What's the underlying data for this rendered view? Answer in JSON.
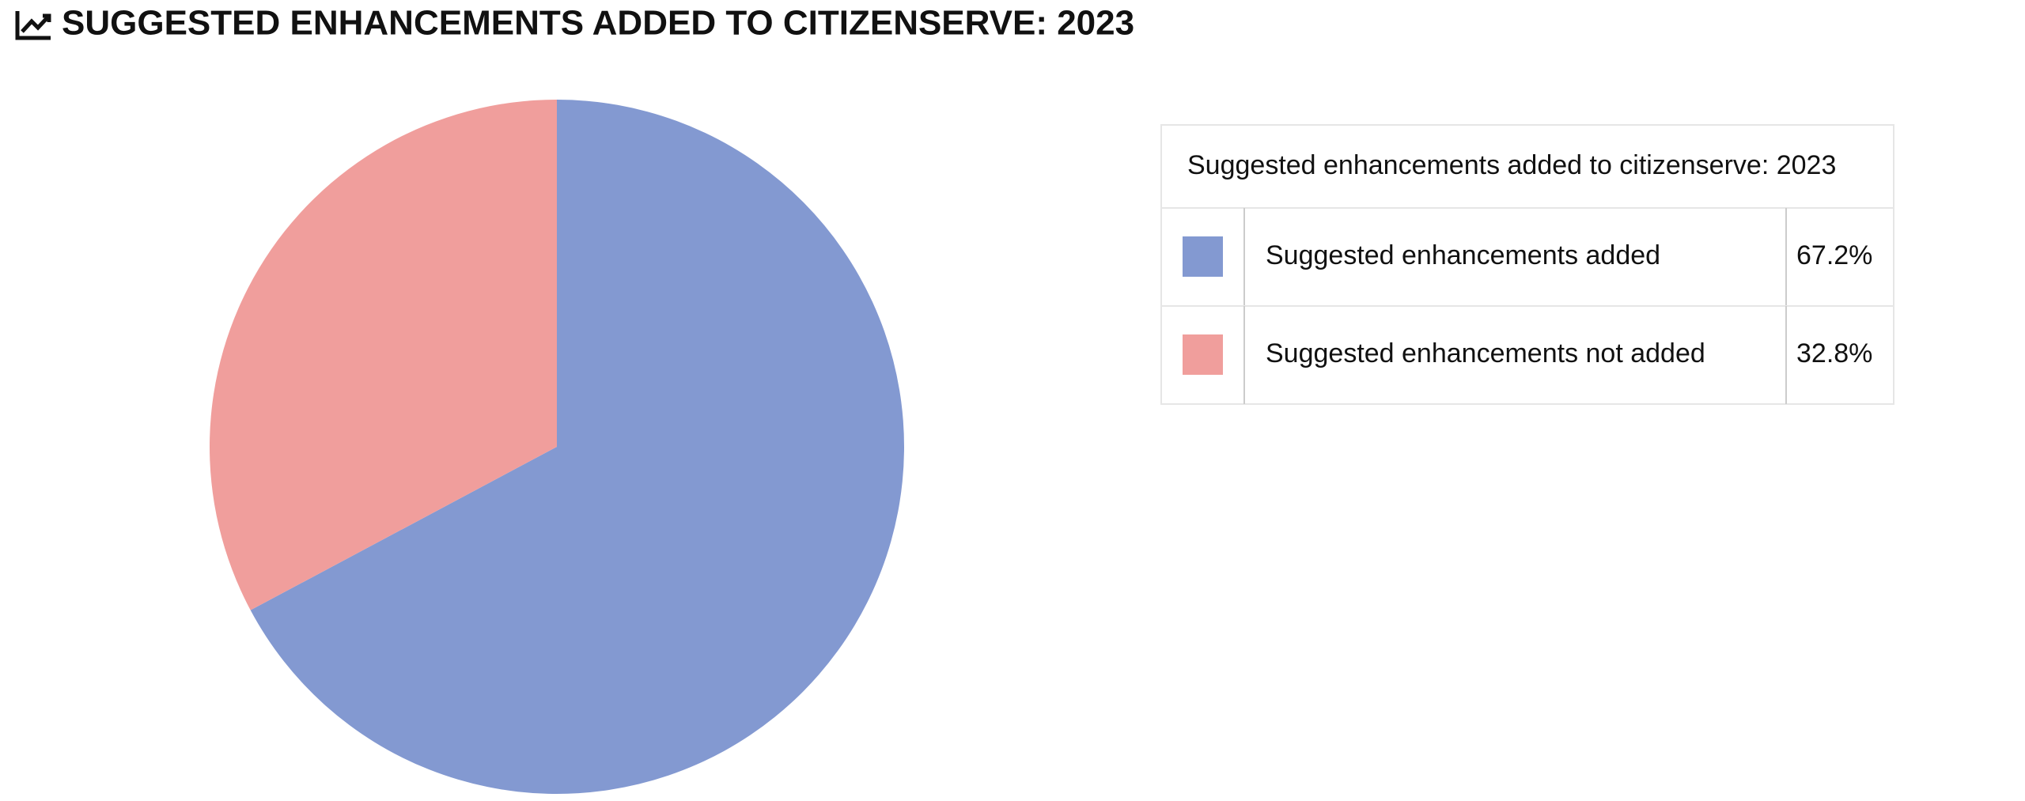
{
  "chart_data": {
    "type": "pie",
    "title": "SUGGESTED ENHANCEMENTS ADDED TO CITIZENSERVE: 2023",
    "legend_title": "Suggested enhancements added to citizenserve: 2023",
    "categories": [
      "Suggested enhancements added",
      "Suggested enhancements not added"
    ],
    "values": [
      67.2,
      32.8
    ],
    "value_labels": [
      "67.2%",
      "32.8%"
    ],
    "colors": [
      "#8399d1",
      "#f09e9c"
    ],
    "legend": "right"
  }
}
